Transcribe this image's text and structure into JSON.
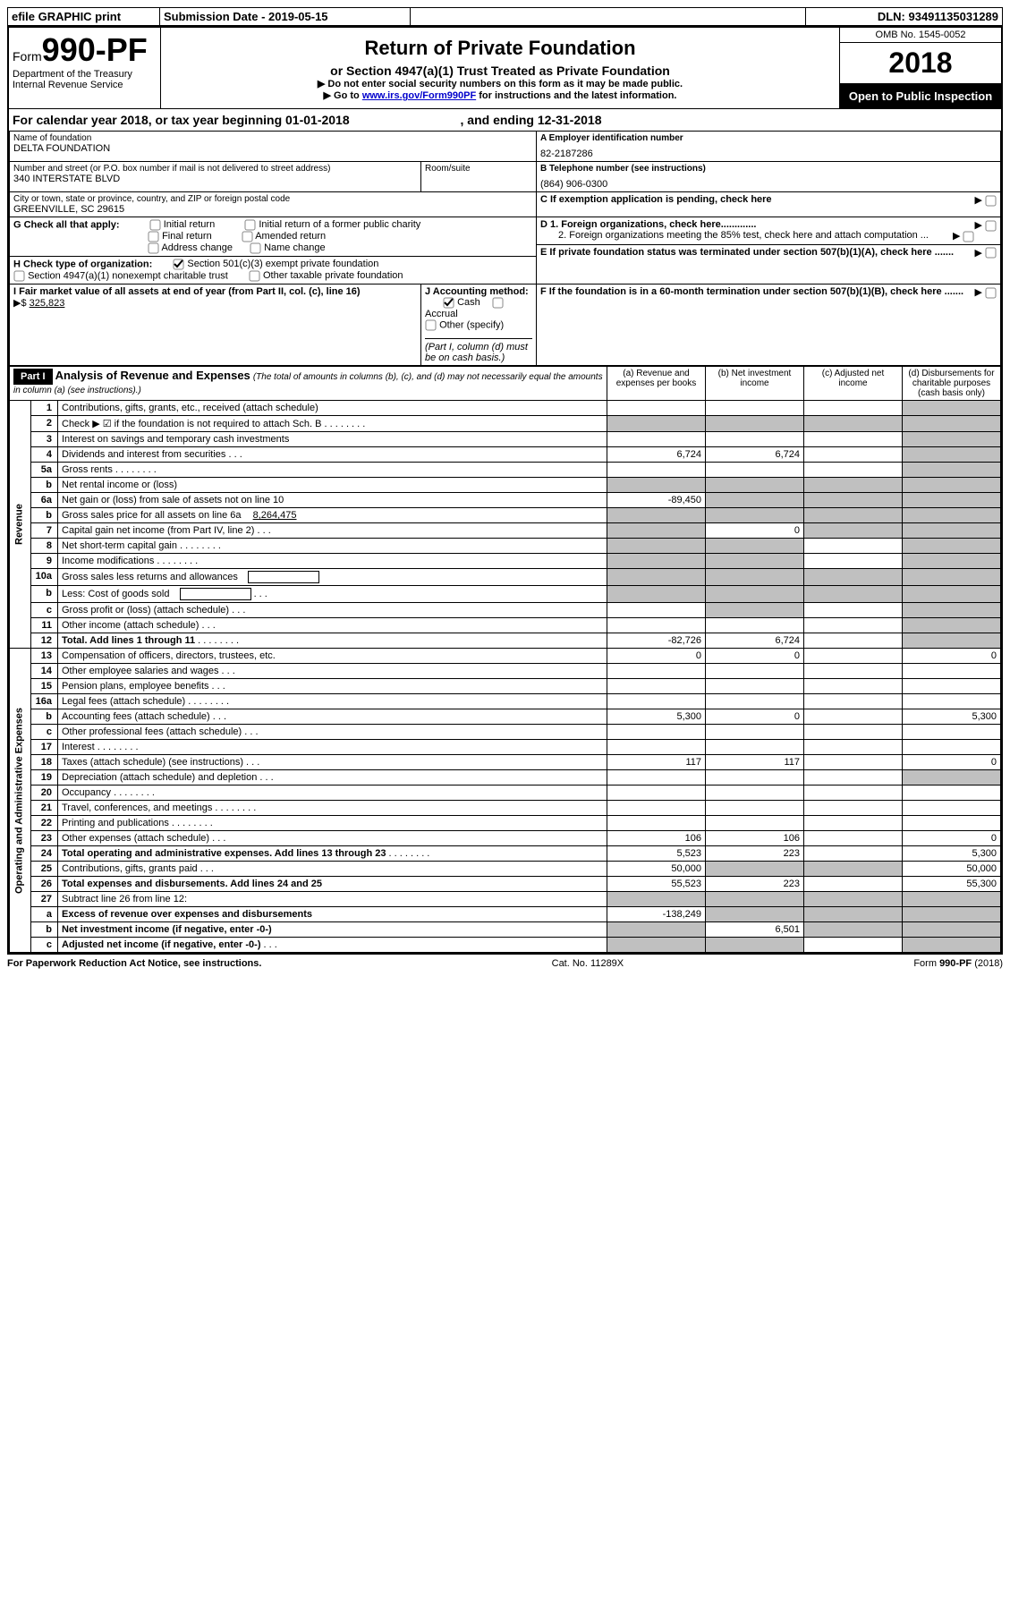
{
  "topbar": {
    "efile": "efile GRAPHIC print",
    "submission_label": "Submission Date - ",
    "submission_date": "2019-05-15",
    "dln_label": "DLN: ",
    "dln": "93491135031289"
  },
  "header": {
    "form_word": "Form",
    "form_num": "990-PF",
    "dept1": "Department of the Treasury",
    "dept2": "Internal Revenue Service",
    "title": "Return of Private Foundation",
    "subtitle": "or Section 4947(a)(1) Trust Treated as Private Foundation",
    "instr1": "Do not enter social security numbers on this form as it may be made public.",
    "instr2_pre": "Go to ",
    "instr2_link": "www.irs.gov/Form990PF",
    "instr2_post": " for instructions and the latest information.",
    "omb": "OMB No. 1545-0052",
    "year": "2018",
    "open": "Open to Public Inspection"
  },
  "calendar": {
    "text_pre": "For calendar year 2018, or tax year beginning ",
    "begin": "01-01-2018",
    "text_mid": " , and ending ",
    "end": "12-31-2018"
  },
  "entity": {
    "name_label": "Name of foundation",
    "name": "DELTA FOUNDATION",
    "addr_label": "Number and street (or P.O. box number if mail is not delivered to street address)",
    "addr": "340 INTERSTATE BLVD",
    "room_label": "Room/suite",
    "city_label": "City or town, state or province, country, and ZIP or foreign postal code",
    "city": "GREENVILLE, SC  29615",
    "ein_label": "A Employer identification number",
    "ein": "82-2187286",
    "phone_label": "B Telephone number (see instructions)",
    "phone": "(864) 906-0300",
    "c_label": "C If exemption application is pending, check here"
  },
  "checks": {
    "g_label": "G Check all that apply:",
    "g1": "Initial return",
    "g2": "Initial return of a former public charity",
    "g3": "Final return",
    "g4": "Amended return",
    "g5": "Address change",
    "g6": "Name change",
    "h_label": "H Check type of organization:",
    "h1": "Section 501(c)(3) exempt private foundation",
    "h2": "Section 4947(a)(1) nonexempt charitable trust",
    "h3": "Other taxable private foundation",
    "d1": "D 1. Foreign organizations, check here.............",
    "d2": "2. Foreign organizations meeting the 85% test, check here and attach computation ...",
    "e": "E If private foundation status was terminated under section 507(b)(1)(A), check here .......",
    "f": "F If the foundation is in a 60-month termination under section 507(b)(1)(B), check here .......",
    "i_label": "I Fair market value of all assets at end of year (from Part II, col. (c), line 16)",
    "i_amount": "325,823",
    "j_label": "J Accounting method:",
    "j1": "Cash",
    "j2": "Accrual",
    "j3": "Other (specify)",
    "j_note": "(Part I, column (d) must be on cash basis.)"
  },
  "part1": {
    "label": "Part I",
    "title": "Analysis of Revenue and Expenses",
    "sub": "(The total of amounts in columns (b), (c), and (d) may not necessarily equal the amounts in column (a) (see instructions).)",
    "cols": {
      "a": "(a)  Revenue and expenses per books",
      "b": "(b)  Net investment income",
      "c": "(c)  Adjusted net income",
      "d": "(d)  Disbursements for charitable purposes (cash basis only)"
    }
  },
  "side_labels": {
    "revenue": "Revenue",
    "expenses": "Operating and Administrative Expenses"
  },
  "lines": [
    {
      "n": "1",
      "desc": "Contributions, gifts, grants, etc., received (attach schedule)",
      "a": "",
      "b": "",
      "c": "",
      "d": "shade"
    },
    {
      "n": "2",
      "desc": "Check ▶ ☑ if the foundation is not required to attach Sch. B",
      "dots": true,
      "a": "shade",
      "b": "shade",
      "c": "shade",
      "d": "shade"
    },
    {
      "n": "3",
      "desc": "Interest on savings and temporary cash investments",
      "a": "",
      "b": "",
      "c": "",
      "d": "shade"
    },
    {
      "n": "4",
      "desc": "Dividends and interest from securities",
      "dots": "short",
      "a": "6,724",
      "b": "6,724",
      "c": "",
      "d": "shade"
    },
    {
      "n": "5a",
      "desc": "Gross rents",
      "dots": true,
      "a": "",
      "b": "",
      "c": "",
      "d": "shade"
    },
    {
      "n": "b",
      "desc": "Net rental income or (loss)",
      "a": "shade",
      "b": "shade",
      "c": "shade",
      "d": "shade"
    },
    {
      "n": "6a",
      "desc": "Net gain or (loss) from sale of assets not on line 10",
      "a": "-89,450",
      "b": "shade",
      "c": "shade",
      "d": "shade"
    },
    {
      "n": "b",
      "desc": "Gross sales price for all assets on line 6a",
      "inline": "8,264,475",
      "a": "shade",
      "b": "shade",
      "c": "shade",
      "d": "shade"
    },
    {
      "n": "7",
      "desc": "Capital gain net income (from Part IV, line 2)",
      "dots": "short",
      "a": "shade",
      "b": "0",
      "c": "shade",
      "d": "shade"
    },
    {
      "n": "8",
      "desc": "Net short-term capital gain",
      "dots": true,
      "a": "shade",
      "b": "shade",
      "c": "",
      "d": "shade"
    },
    {
      "n": "9",
      "desc": "Income modifications",
      "dots": true,
      "a": "shade",
      "b": "shade",
      "c": "",
      "d": "shade"
    },
    {
      "n": "10a",
      "desc": "Gross sales less returns and allowances",
      "box": true,
      "a": "shade",
      "b": "shade",
      "c": "shade",
      "d": "shade"
    },
    {
      "n": "b",
      "desc": "Less: Cost of goods sold",
      "dots": "short",
      "box": true,
      "a": "shade",
      "b": "shade",
      "c": "shade",
      "d": "shade"
    },
    {
      "n": "c",
      "desc": "Gross profit or (loss) (attach schedule)",
      "dots": "short",
      "a": "",
      "b": "shade",
      "c": "",
      "d": "shade"
    },
    {
      "n": "11",
      "desc": "Other income (attach schedule)",
      "dots": "short",
      "a": "",
      "b": "",
      "c": "",
      "d": "shade"
    },
    {
      "n": "12",
      "desc": "Total. Add lines 1 through 11",
      "dots": true,
      "bold": true,
      "a": "-82,726",
      "b": "6,724",
      "c": "",
      "d": "shade"
    },
    {
      "n": "13",
      "desc": "Compensation of officers, directors, trustees, etc.",
      "a": "0",
      "b": "0",
      "c": "",
      "d": "0"
    },
    {
      "n": "14",
      "desc": "Other employee salaries and wages",
      "dots": "short",
      "a": "",
      "b": "",
      "c": "",
      "d": ""
    },
    {
      "n": "15",
      "desc": "Pension plans, employee benefits",
      "dots": "short",
      "a": "",
      "b": "",
      "c": "",
      "d": ""
    },
    {
      "n": "16a",
      "desc": "Legal fees (attach schedule)",
      "dots": true,
      "a": "",
      "b": "",
      "c": "",
      "d": ""
    },
    {
      "n": "b",
      "desc": "Accounting fees (attach schedule)",
      "dots": "short",
      "a": "5,300",
      "b": "0",
      "c": "",
      "d": "5,300"
    },
    {
      "n": "c",
      "desc": "Other professional fees (attach schedule)",
      "dots": "short",
      "a": "",
      "b": "",
      "c": "",
      "d": ""
    },
    {
      "n": "17",
      "desc": "Interest",
      "dots": true,
      "a": "",
      "b": "",
      "c": "",
      "d": ""
    },
    {
      "n": "18",
      "desc": "Taxes (attach schedule) (see instructions)",
      "dots": "short",
      "a": "117",
      "b": "117",
      "c": "",
      "d": "0"
    },
    {
      "n": "19",
      "desc": "Depreciation (attach schedule) and depletion",
      "dots": "short",
      "a": "",
      "b": "",
      "c": "",
      "d": "shade"
    },
    {
      "n": "20",
      "desc": "Occupancy",
      "dots": true,
      "a": "",
      "b": "",
      "c": "",
      "d": ""
    },
    {
      "n": "21",
      "desc": "Travel, conferences, and meetings",
      "dots": true,
      "a": "",
      "b": "",
      "c": "",
      "d": ""
    },
    {
      "n": "22",
      "desc": "Printing and publications",
      "dots": true,
      "a": "",
      "b": "",
      "c": "",
      "d": ""
    },
    {
      "n": "23",
      "desc": "Other expenses (attach schedule)",
      "dots": "short",
      "a": "106",
      "b": "106",
      "c": "",
      "d": "0"
    },
    {
      "n": "24",
      "desc": "Total operating and administrative expenses. Add lines 13 through 23",
      "dots": true,
      "bold": true,
      "a": "5,523",
      "b": "223",
      "c": "",
      "d": "5,300"
    },
    {
      "n": "25",
      "desc": "Contributions, gifts, grants paid",
      "dots": "short",
      "a": "50,000",
      "b": "shade",
      "c": "shade",
      "d": "50,000"
    },
    {
      "n": "26",
      "desc": "Total expenses and disbursements. Add lines 24 and 25",
      "bold": true,
      "a": "55,523",
      "b": "223",
      "c": "",
      "d": "55,300"
    },
    {
      "n": "27",
      "desc": "Subtract line 26 from line 12:",
      "a": "shade",
      "b": "shade",
      "c": "shade",
      "d": "shade"
    },
    {
      "n": "a",
      "desc": "Excess of revenue over expenses and disbursements",
      "bold": true,
      "a": "-138,249",
      "b": "shade",
      "c": "shade",
      "d": "shade"
    },
    {
      "n": "b",
      "desc": "Net investment income (if negative, enter -0-)",
      "bold": true,
      "a": "shade",
      "b": "6,501",
      "c": "shade",
      "d": "shade"
    },
    {
      "n": "c",
      "desc": "Adjusted net income (if negative, enter -0-)",
      "dots": "short",
      "bold": true,
      "a": "shade",
      "b": "shade",
      "c": "",
      "d": "shade"
    }
  ],
  "footer": {
    "left": "For Paperwork Reduction Act Notice, see instructions.",
    "mid": "Cat. No. 11289X",
    "right": "Form 990-PF (2018)"
  }
}
